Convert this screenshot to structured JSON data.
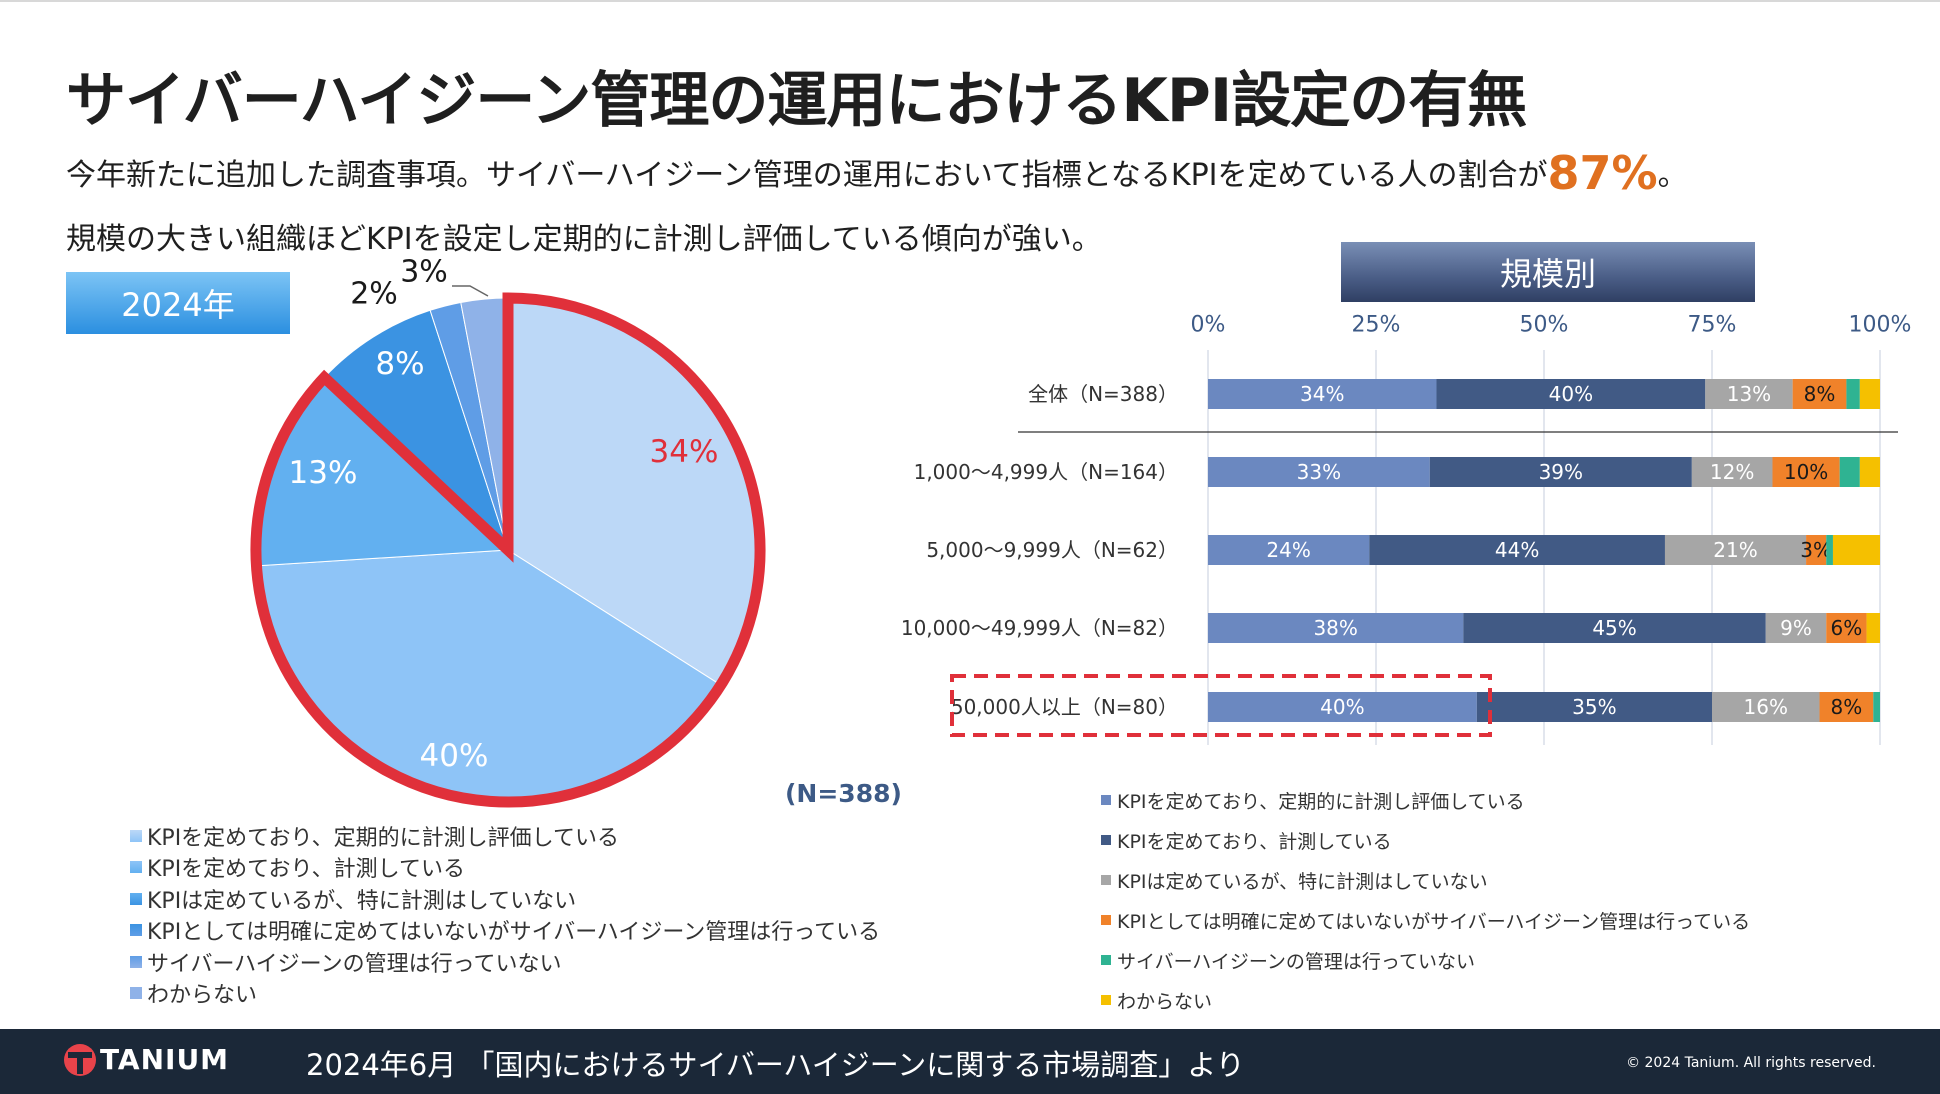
{
  "title": "サイバーハイジーン管理の運用におけるKPI設定の有無",
  "subtitle1": {
    "text": "今年新たに追加した調査事項。サイバーハイジーン管理の運用において指標となるKPIを定めている人の割合が",
    "highlight": "87%",
    "suffix": "。"
  },
  "subtitle2": "規模の大きい組織ほどKPIを設定し定期的に計測し評価している傾向が強い。",
  "year_label": "2024年",
  "scale_label": "規模別",
  "n_total": "(N=388)",
  "colors": {
    "pie": [
      "#bcd8f7",
      "#8ec4f7",
      "#62b0f0",
      "#3b93e2",
      "#5f9de6",
      "#8fb2e8"
    ],
    "bar": [
      "#6b88c0",
      "#415a85",
      "#a6a6a6",
      "#f0822a",
      "#2fb392",
      "#f5c000"
    ],
    "highlight": "#e0303a",
    "accent": "#e07020"
  },
  "legend": [
    "KPIを定めており、定期的に計測し評価している",
    "KPIを定めており、計測している",
    "KPIは定めているが、特に計測はしていない",
    "KPIとしては明確に定めてはいないがサイバーハイジーン管理は行っている",
    "サイバーハイジーンの管理は行っていない",
    "わからない"
  ],
  "chart_data": [
    {
      "type": "pie",
      "title": "2024年",
      "labels": [
        "KPIを定めており、定期的に計測し評価している",
        "KPIを定めており、計測している",
        "KPIは定めているが、特に計測はしていない",
        "KPIとしては明確に定めてはいないがサイバーハイジーン管理は行っている",
        "サイバーハイジーンの管理は行っていない",
        "わからない"
      ],
      "values": [
        34,
        40,
        13,
        8,
        2,
        3
      ],
      "value_labels": [
        "34%",
        "40%",
        "13%",
        "8%",
        "2%",
        "3%"
      ],
      "highlighted_slices": [
        0,
        1,
        2
      ],
      "n": "(N=388)"
    },
    {
      "type": "bar",
      "orientation": "horizontal",
      "stacked": true,
      "title": "規模別",
      "categories": [
        "全体（N=388）",
        "1,000～4,999人（N=164）",
        "5,000～9,999人（N=62）",
        "10,000～49,999人（N=82）",
        "50,000人以上（N=80）"
      ],
      "x_ticks": [
        "0%",
        "25%",
        "50%",
        "75%",
        "100%"
      ],
      "xlim": [
        0,
        100
      ],
      "highlighted_category": "50,000人以上（N=80）",
      "series": [
        {
          "name": "KPIを定めており、定期的に計測し評価している",
          "values": [
            34,
            33,
            24,
            38,
            40
          ],
          "labels": [
            "34%",
            "33%",
            "24%",
            "38%",
            "40%"
          ]
        },
        {
          "name": "KPIを定めており、計測している",
          "values": [
            40,
            39,
            44,
            45,
            35
          ],
          "labels": [
            "40%",
            "39%",
            "44%",
            "45%",
            "35%"
          ]
        },
        {
          "name": "KPIは定めているが、特に計測はしていない",
          "values": [
            13,
            12,
            21,
            9,
            16
          ],
          "labels": [
            "13%",
            "12%",
            "21%",
            "9%",
            "16%"
          ]
        },
        {
          "name": "KPIとしては明確に定めてはいないがサイバーハイジーン管理は行っている",
          "values": [
            8,
            10,
            3,
            6,
            8
          ],
          "labels": [
            "8%",
            "10%",
            "3%",
            "6%",
            "8%"
          ]
        },
        {
          "name": "サイバーハイジーンの管理は行っていない",
          "values": [
            2,
            3,
            1,
            0,
            1
          ],
          "labels": [
            "",
            "",
            "",
            "",
            ""
          ]
        },
        {
          "name": "わからない",
          "values": [
            3,
            3,
            7,
            2,
            0
          ],
          "labels": [
            "",
            "",
            "",
            "",
            ""
          ]
        }
      ]
    }
  ],
  "footer": {
    "logo_text": "TANIUM",
    "source": "2024年6月 「国内におけるサイバーハイジーンに関する市場調査」より",
    "copyright": "© 2024 Tanium. All rights reserved."
  }
}
